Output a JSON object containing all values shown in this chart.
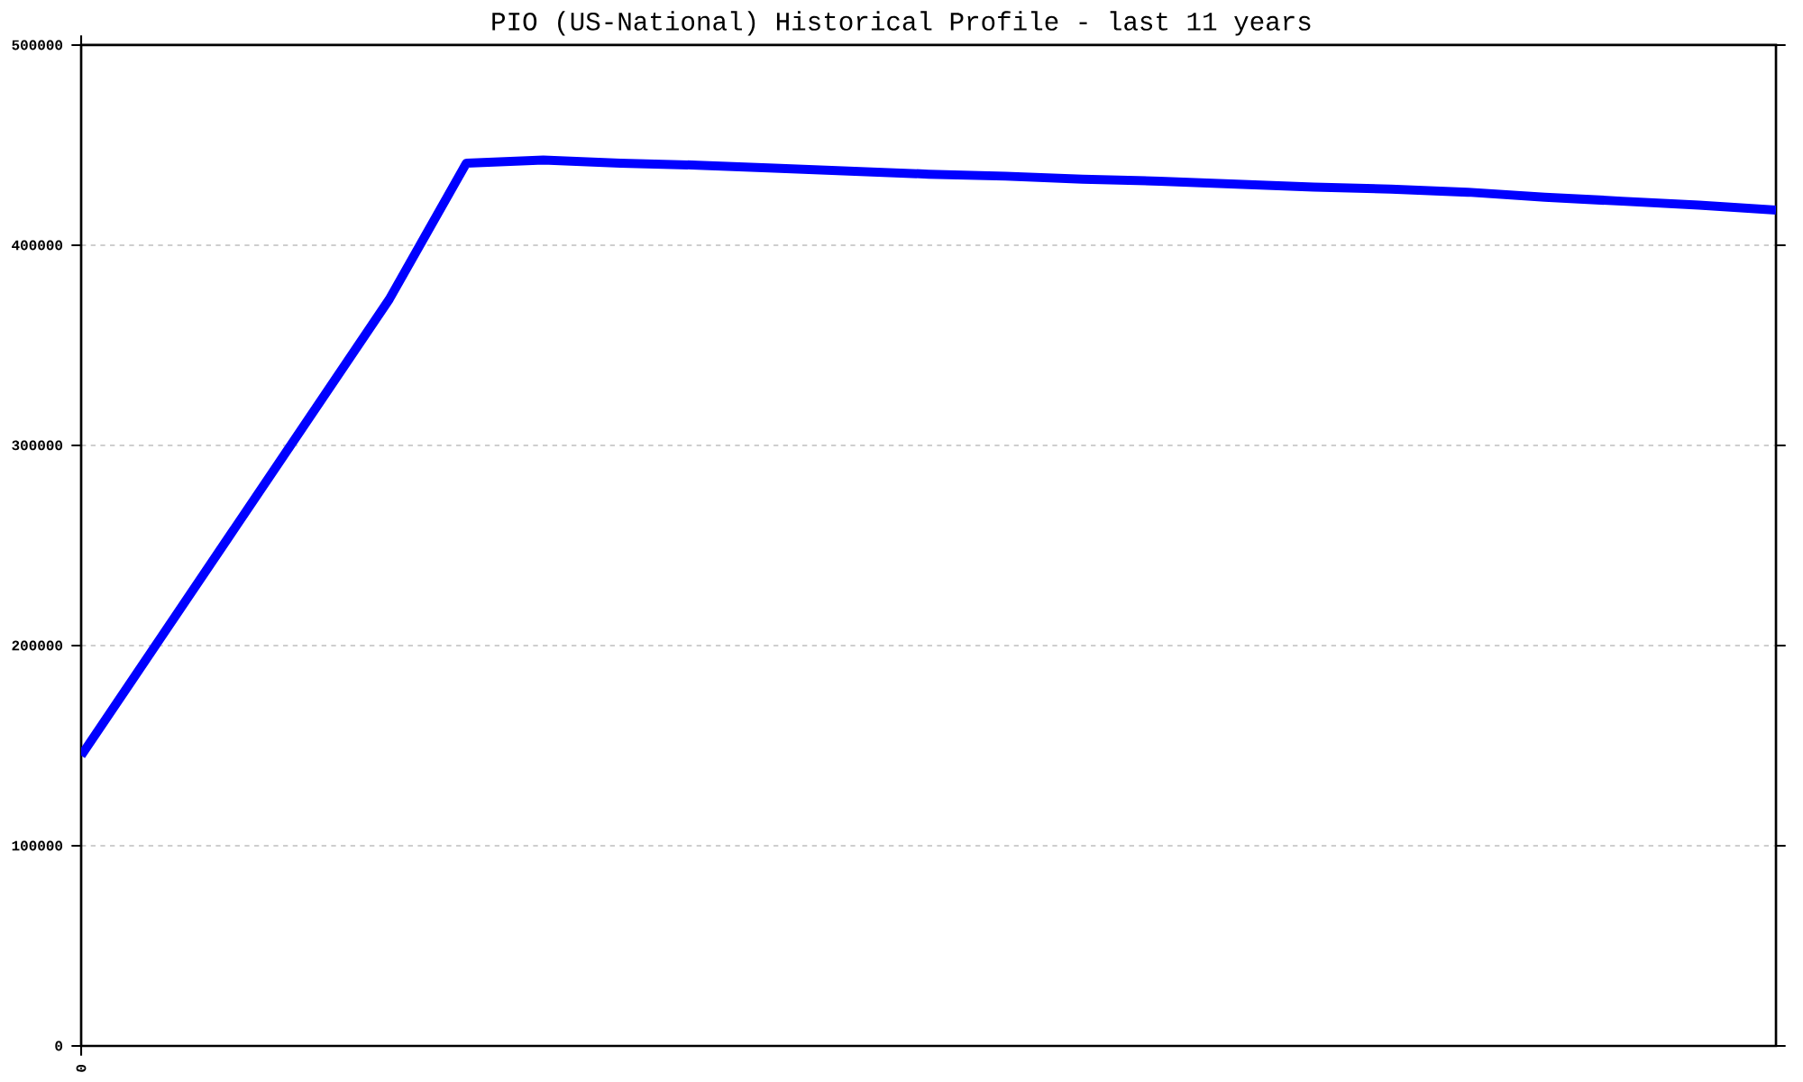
{
  "chart_data": {
    "type": "line",
    "title": "PIO (US-National) Historical Profile - last 11 years",
    "categories": [
      "0",
      null,
      null,
      null,
      null,
      null,
      null,
      null,
      null,
      null,
      null,
      null,
      null,
      null,
      null,
      null,
      null,
      null,
      null,
      null,
      null,
      null,
      null
    ],
    "series": [
      {
        "color": "#0000ff",
        "values": [
          145000,
          202000,
          259000,
          316000,
          373000,
          441000,
          442500,
          441000,
          440000,
          438500,
          437000,
          435500,
          434500,
          433000,
          432000,
          430500,
          429000,
          428000,
          426500,
          424000,
          422000,
          420000,
          417500
        ]
      }
    ],
    "ylim": [
      0,
      500000
    ],
    "yticks": [
      0,
      100000,
      200000,
      300000,
      400000,
      500000
    ],
    "grid": "y"
  }
}
